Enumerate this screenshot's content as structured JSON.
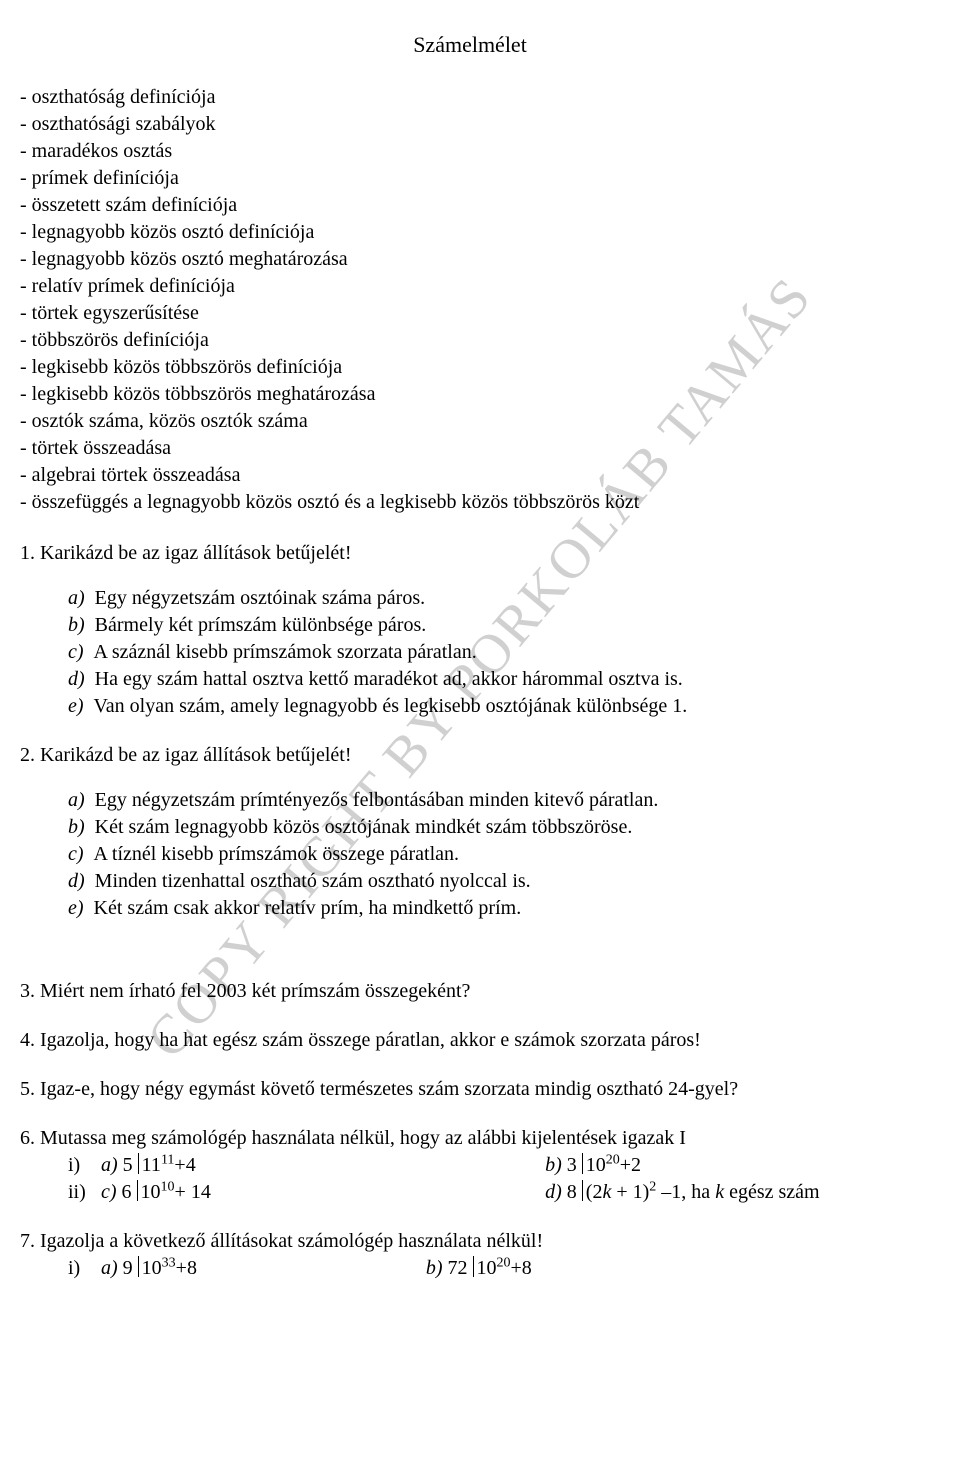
{
  "watermark": "COPY RIGHT BY PORKOLÁB TAMÁS",
  "title": "Számelmélet",
  "definitions": [
    "- oszthatóság definíciója",
    "- oszthatósági szabályok",
    "- maradékos osztás",
    "- prímek definíciója",
    "- összetett szám definíciója",
    "- legnagyobb közös osztó definíciója",
    "- legnagyobb közös osztó meghatározása",
    "- relatív prímek definíciója",
    "- törtek egyszerűsítése",
    "- többszörös definíciója",
    "- legkisebb közös többszörös definíciója",
    "- legkisebb közös többszörös meghatározása",
    "- osztók száma, közös osztók száma",
    "- törtek összeadása",
    "- algebrai törtek összeadása",
    "- összefüggés a legnagyobb közös osztó és a legkisebb közös többszörös közt"
  ],
  "q1": {
    "stem": "1.   Karikázd be az igaz állítások betűjelét!",
    "items": {
      "a": "Egy négyzetszám osztóinak száma páros.",
      "b": "Bármely két prímszám különbsége páros.",
      "c": "A száznál kisebb prímszámok szorzata páratlan.",
      "d": "Ha egy szám hattal osztva kettő maradékot ad, akkor hárommal osztva is.",
      "e": "Van olyan szám, amely legnagyobb és legkisebb osztójának különbsége 1."
    }
  },
  "q2": {
    "stem": "2.   Karikázd be az igaz állítások betűjelét!",
    "items": {
      "a": "Egy négyzetszám prímtényezős felbontásában minden kitevő páratlan.",
      "b": "Két szám legnagyobb közös osztójának mindkét szám többszöröse.",
      "c": "A tíznél kisebb prímszámok összege páratlan.",
      "d": "Minden tizenhattal osztható szám osztható nyolccal is.",
      "e": "Két szám csak akkor relatív prím, ha mindkettő prím."
    }
  },
  "q3": "3.   Miért nem írható fel 2003 két prímszám összegeként?",
  "q4": "4.   Igazolja, hogy ha hat egész szám összege páratlan, akkor e számok szorzata páros!",
  "q5": "5.   Igaz-e, hogy négy egymást követő természetes szám szorzata mindig osztható 24-gyel?",
  "q6": {
    "stem": "6.   Mutassa meg számológép használata nélkül, hogy az alábbi kijelentések igazak I",
    "ia_prefix": "i)   ",
    "ib_prefix": "ii)  ",
    "a_label": "a)",
    "a_left_number": "5",
    "a_expr_base": "11",
    "a_expr_exp": "11",
    "a_expr_tail": "+4",
    "b_label": "b)",
    "b_left_number": "3",
    "b_expr_base": "10",
    "b_expr_exp": "20",
    "b_expr_tail": "+2",
    "c_label": "c)",
    "c_left_number": "6",
    "c_expr_base": "10",
    "c_expr_exp": "10",
    "c_expr_tail": "+ 14",
    "d_label": "d)",
    "d_left_number": "8",
    "d_expr_pre": "(2",
    "d_expr_k": "k",
    "d_expr_mid": " + 1)",
    "d_expr_exp": "2",
    "d_expr_tail1": " –1, ha ",
    "d_expr_tail2": " egész szám"
  },
  "q7": {
    "stem": "7.   Igazolja a következő állításokat számológép használata nélkül!",
    "i_prefix": "i)   ",
    "a_label": "a)",
    "a_left_number": "9",
    "a_base": "10",
    "a_exp": "33",
    "a_tail": "+8",
    "b_label": "b)",
    "b_left_number": "72",
    "b_base": "10",
    "b_exp": "20",
    "b_tail": "+8"
  }
}
